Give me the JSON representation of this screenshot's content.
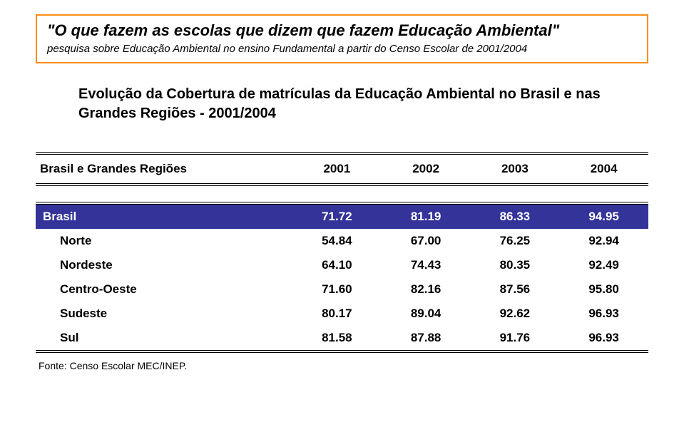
{
  "title": {
    "main": "\"O que fazem as escolas que dizem que fazem Educação Ambiental\"",
    "sub": "pesquisa sobre Educação Ambiental no ensino Fundamental a partir do Censo Escolar de 2001/2004",
    "border_color": "#ff8c1a"
  },
  "heading": "Evolução da Cobertura de matrículas da Educação Ambiental no Brasil e nas Grandes Regiões - 2001/2004",
  "table": {
    "header_label": "Brasil e Grandes Regiões",
    "years": [
      "2001",
      "2002",
      "2003",
      "2004"
    ],
    "highlight": {
      "bg": "#333399",
      "fg": "#ffffff",
      "label": "Brasil",
      "values": [
        "71.72",
        "81.19",
        "86.33",
        "94.95"
      ]
    },
    "rows": [
      {
        "label": "Norte",
        "values": [
          "54.84",
          "67.00",
          "76.25",
          "92.94"
        ]
      },
      {
        "label": "Nordeste",
        "values": [
          "64.10",
          "74.43",
          "80.35",
          "92.49"
        ]
      },
      {
        "label": "Centro-Oeste",
        "values": [
          "71.60",
          "82.16",
          "87.56",
          "95.80"
        ]
      },
      {
        "label": "Sudeste",
        "values": [
          "80.17",
          "89.04",
          "92.62",
          "96.93"
        ]
      },
      {
        "label": "Sul",
        "values": [
          "81.58",
          "87.88",
          "91.76",
          "96.93"
        ]
      }
    ]
  },
  "source": "Fonte: Censo Escolar MEC/INEP."
}
